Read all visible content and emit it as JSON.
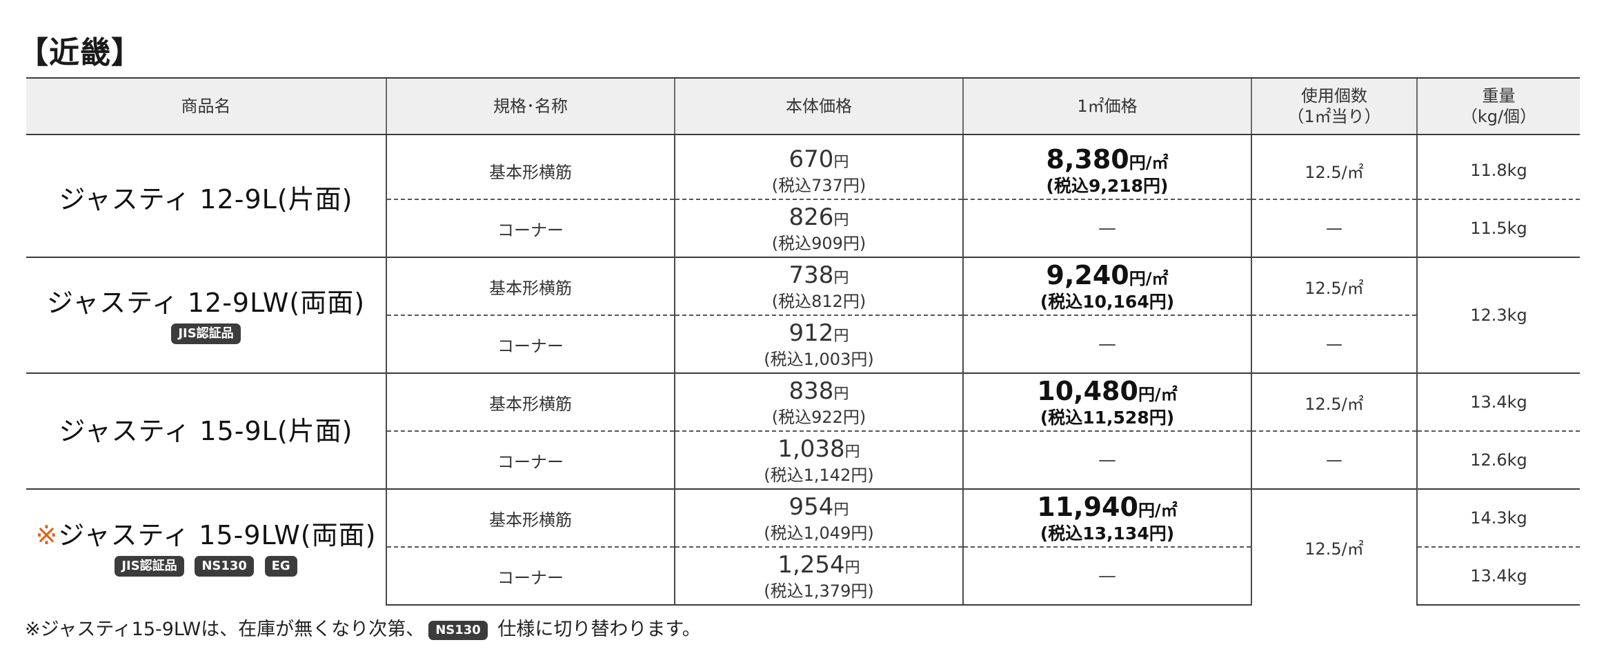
{
  "region": "【近畿】",
  "headers": {
    "name": "商品名",
    "spec": "規格･名称",
    "body_price": "本体価格",
    "sqm_price": "1㎡価格",
    "usage_line1": "使用個数",
    "usage_line2": "（1㎡当り）",
    "weight_line1": "重量",
    "weight_line2": "（kg/個）"
  },
  "units": {
    "yen": "円",
    "yen_sqm": "円/㎡"
  },
  "dash": "—",
  "products": [
    {
      "mark": "",
      "name": "ジャスティ 12-9L(片面)",
      "badges": [],
      "rows": [
        {
          "spec": "基本形横筋",
          "body": "670",
          "body_tax": "(税込737円)",
          "sqm": "8,380",
          "sqm_tax": "(税込9,218円)",
          "usage": "12.5/㎡",
          "weight": "11.8kg"
        },
        {
          "spec": "コーナー",
          "body": "826",
          "body_tax": "(税込909円)",
          "usage": "—",
          "weight": "11.5kg"
        }
      ]
    },
    {
      "mark": "",
      "name": "ジャスティ 12-9LW(両面)",
      "badges": [
        "JIS認証品"
      ],
      "rows": [
        {
          "spec": "基本形横筋",
          "body": "738",
          "body_tax": "(税込812円)",
          "sqm": "9,240",
          "sqm_tax": "(税込10,164円)",
          "usage": "12.5/㎡",
          "weight": "12.3kg"
        },
        {
          "spec": "コーナー",
          "body": "912",
          "body_tax": "(税込1,003円)",
          "usage": "—"
        }
      ]
    },
    {
      "mark": "",
      "name": "ジャスティ 15-9L(片面)",
      "badges": [],
      "rows": [
        {
          "spec": "基本形横筋",
          "body": "838",
          "body_tax": "(税込922円)",
          "sqm": "10,480",
          "sqm_tax": "(税込11,528円)",
          "usage": "12.5/㎡",
          "weight": "13.4kg"
        },
        {
          "spec": "コーナー",
          "body": "1,038",
          "body_tax": "(税込1,142円)",
          "usage": "—",
          "weight": "12.6kg"
        }
      ]
    },
    {
      "mark": "※",
      "name": "ジャスティ 15-9LW(両面)",
      "badges": [
        "JIS認証品",
        "NS130",
        "EG"
      ],
      "rows": [
        {
          "spec": "基本形横筋",
          "body": "954",
          "body_tax": "(税込1,049円)",
          "sqm": "11,940",
          "sqm_tax": "(税込13,134円)",
          "usage": "12.5/㎡",
          "weight": "14.3kg"
        },
        {
          "spec": "コーナー",
          "body": "1,254",
          "body_tax": "(税込1,379円)",
          "weight": "13.4kg"
        }
      ]
    }
  ],
  "footnote": {
    "prefix": "※ジャスティ15-9LWは、在庫が無くなり次第、",
    "badge": "NS130",
    "suffix": " 仕様に切り替わります。"
  },
  "colors": {
    "mark": "#e2621c",
    "badge_bg": "#3c3c3c",
    "header_bg": "#efefef"
  }
}
